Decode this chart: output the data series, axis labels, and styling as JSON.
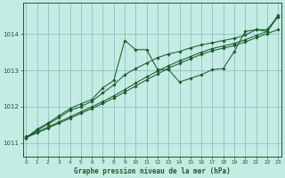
{
  "title": "Graphe pression niveau de la mer (hPa)",
  "bg_color": "#c5ebe5",
  "grid_color": "#7abfb8",
  "line_color": "#1a5c2a",
  "xlim": [
    -0.3,
    23.3
  ],
  "ylim": [
    1010.62,
    1014.85
  ],
  "xticks": [
    0,
    1,
    2,
    3,
    4,
    5,
    6,
    7,
    8,
    9,
    10,
    11,
    12,
    13,
    14,
    15,
    16,
    17,
    18,
    19,
    20,
    21,
    22,
    23
  ],
  "yticks": [
    1011,
    1012,
    1013,
    1014
  ],
  "series": [
    {
      "x": [
        0,
        1,
        2,
        3,
        4,
        5,
        6,
        7,
        8,
        9,
        10,
        11,
        12,
        13,
        14,
        15,
        16,
        17,
        18,
        19,
        20,
        21,
        22,
        23
      ],
      "y": [
        1011.15,
        1011.38,
        1011.55,
        1011.75,
        1011.95,
        1012.08,
        1012.2,
        1012.52,
        1012.72,
        1013.82,
        1013.57,
        1013.57,
        1013.02,
        1013.02,
        1012.68,
        1012.78,
        1012.88,
        1013.02,
        1013.05,
        1013.52,
        1014.07,
        1014.12,
        1014.07,
        1014.52
      ]
    },
    {
      "x": [
        0,
        1,
        2,
        3,
        4,
        5,
        6,
        7,
        8,
        9,
        10,
        11,
        12,
        13,
        14,
        15,
        16,
        17,
        18,
        19,
        20,
        21,
        22,
        23
      ],
      "y": [
        1011.15,
        1011.35,
        1011.52,
        1011.7,
        1011.9,
        1012.0,
        1012.15,
        1012.38,
        1012.6,
        1012.88,
        1013.05,
        1013.2,
        1013.35,
        1013.45,
        1013.52,
        1013.62,
        1013.7,
        1013.76,
        1013.82,
        1013.88,
        1013.97,
        1014.12,
        1014.12,
        1014.48
      ]
    },
    {
      "x": [
        0,
        1,
        2,
        3,
        4,
        5,
        6,
        7,
        8,
        9,
        10,
        11,
        12,
        13,
        14,
        15,
        16,
        17,
        18,
        19,
        20,
        21,
        22,
        23
      ],
      "y": [
        1011.18,
        1011.3,
        1011.44,
        1011.58,
        1011.72,
        1011.86,
        1012.0,
        1012.14,
        1012.3,
        1012.47,
        1012.65,
        1012.82,
        1012.98,
        1013.13,
        1013.26,
        1013.38,
        1013.5,
        1013.6,
        1013.67,
        1013.74,
        1013.84,
        1013.96,
        1014.07,
        1014.48
      ]
    },
    {
      "x": [
        0,
        1,
        2,
        3,
        4,
        5,
        6,
        7,
        8,
        9,
        10,
        11,
        12,
        13,
        14,
        15,
        16,
        17,
        18,
        19,
        20,
        21,
        22,
        23
      ],
      "y": [
        1011.15,
        1011.28,
        1011.41,
        1011.55,
        1011.68,
        1011.82,
        1011.95,
        1012.09,
        1012.24,
        1012.4,
        1012.57,
        1012.74,
        1012.9,
        1013.06,
        1013.19,
        1013.32,
        1013.44,
        1013.54,
        1013.61,
        1013.68,
        1013.78,
        1013.9,
        1014.01,
        1014.12
      ]
    }
  ]
}
